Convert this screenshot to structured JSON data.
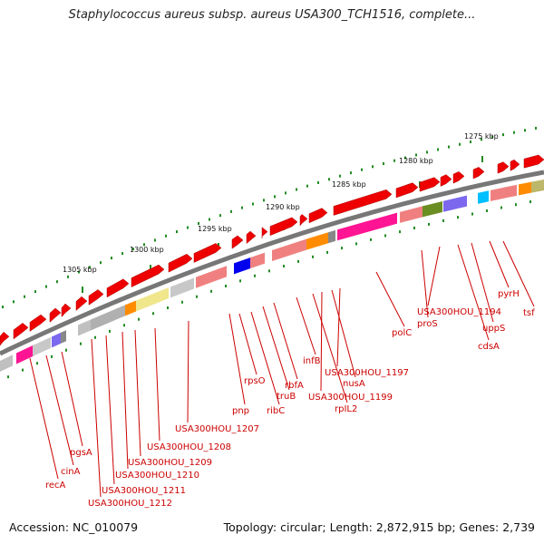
{
  "header": {
    "title": "Staphylococcus aureus subsp. aureus USA300_TCH1516, complete..."
  },
  "footer": {
    "accession": "Accession: NC_010079",
    "stats": "Topology: circular; Length: 2,872,915 bp; Genes: 2,739"
  },
  "ruler": {
    "labels": [
      "1275 kbp",
      "1280 kbp",
      "1285 kbp",
      "1290 kbp",
      "1295 kbp",
      "1300 kbp",
      "1305 kbp"
    ]
  },
  "gene_labels": [
    "tsf",
    "pyrH",
    "uppS",
    "cdsA",
    "USA300HOU_1194",
    "proS",
    "polC",
    "USA300HOU_1197",
    "nusA",
    "USA300HOU_1199",
    "rpIL2",
    "infB",
    "rbfA",
    "truB",
    "ribC",
    "rpsO",
    "pnp",
    "USA300HOU_1207",
    "USA300HOU_1208",
    "USA300HOU_1209",
    "USA300HOU_1210",
    "USA300HOU_1211",
    "USA300HOU_1212",
    "pgsA",
    "cinA",
    "recA"
  ],
  "colors": {
    "forward_gene": "#ee0000",
    "label": "#cc0000",
    "backbone": "#777777",
    "tick": "#228b22"
  }
}
